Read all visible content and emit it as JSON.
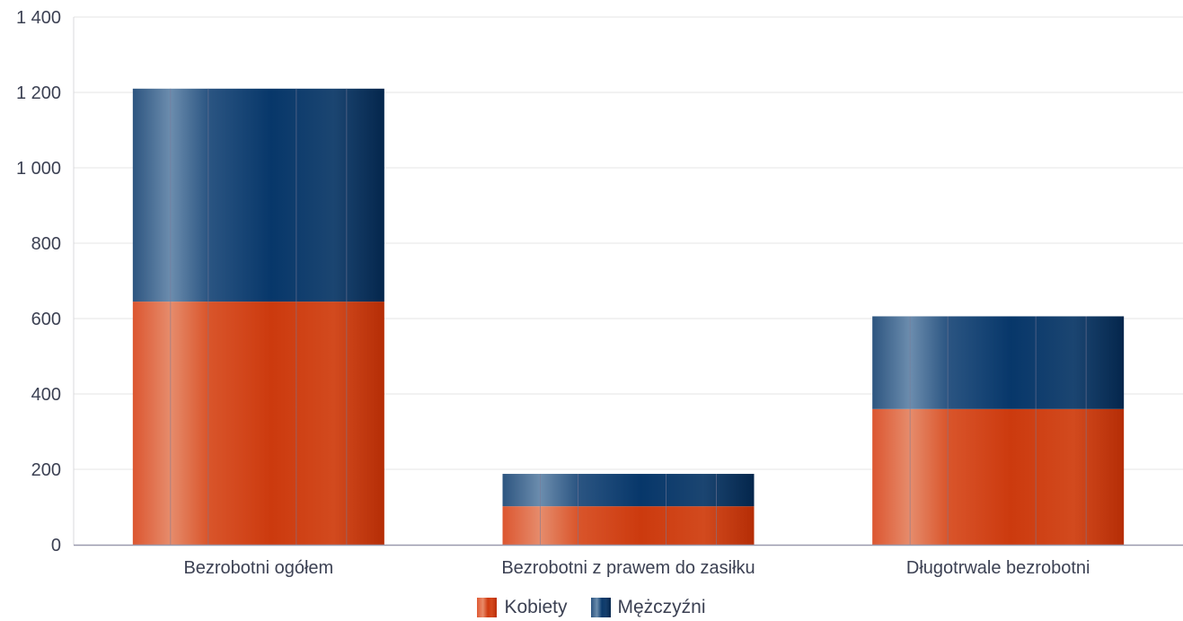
{
  "chart_data": {
    "type": "bar",
    "stacked": true,
    "categories": [
      "Bezrobotni ogółem",
      "Bezrobotni z prawem do zasiłku",
      "Długotrwale bezrobotni"
    ],
    "series": [
      {
        "name": "Kobiety",
        "values": [
          645,
          102,
          360
        ],
        "color": "#d13c10"
      },
      {
        "name": "Mężczyźni",
        "values": [
          565,
          86,
          246
        ],
        "color": "#0b3a6c"
      }
    ],
    "ylim": [
      0,
      1400
    ],
    "yticks": [
      0,
      200,
      400,
      600,
      800,
      1000,
      1200,
      1400
    ],
    "ytick_labels": [
      "0",
      "200",
      "400",
      "600",
      "800",
      "1 000",
      "1 200",
      "1 400"
    ],
    "grid": true,
    "legend": "bottom-center",
    "xlabel": "",
    "ylabel": ""
  }
}
